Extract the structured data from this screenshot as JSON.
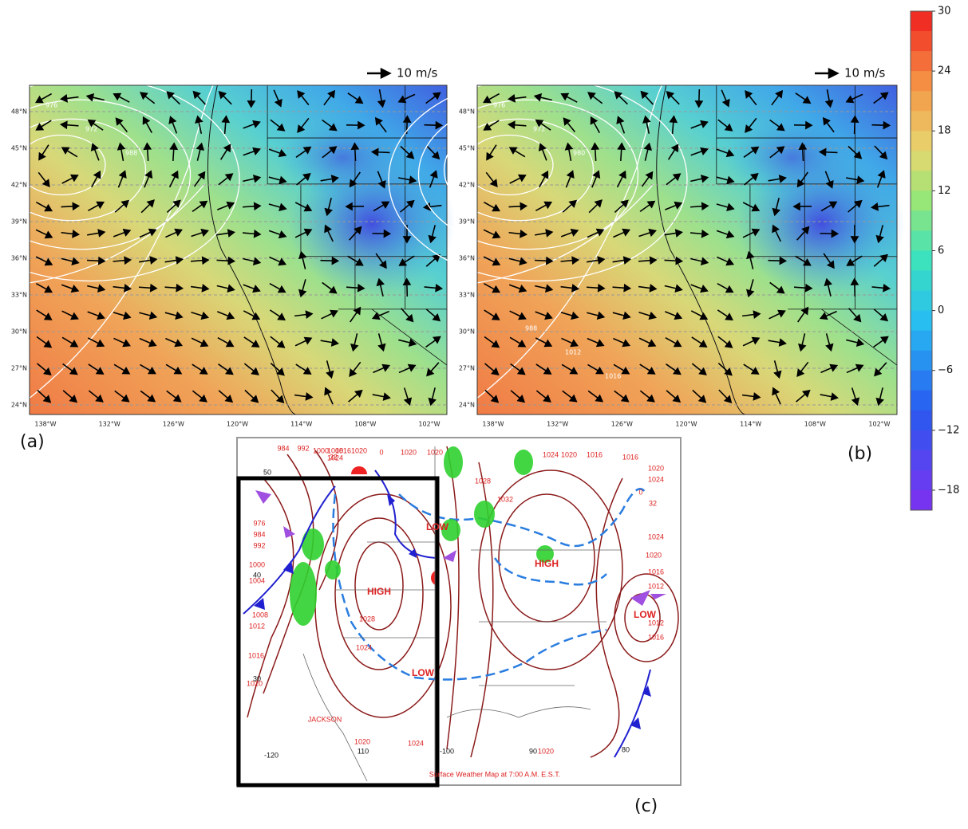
{
  "panels": [
    {
      "label": "(a)",
      "vector_key": "10 m/s",
      "contour_labels": [
        "976",
        "972",
        "988"
      ]
    },
    {
      "label": "(b)",
      "vector_key": "10 m/s",
      "contour_labels": [
        "976",
        "972",
        "980",
        "988",
        "1012",
        "1016"
      ]
    }
  ],
  "axes": {
    "lat_labels": [
      "48°N",
      "45°N",
      "42°N",
      "39°N",
      "36°N",
      "33°N",
      "30°N",
      "27°N",
      "24°N"
    ],
    "lon_labels": [
      "138°W",
      "132°W",
      "126°W",
      "120°W",
      "114°W",
      "108°W",
      "102°W"
    ]
  },
  "colorbar": {
    "lim": [
      -20,
      30
    ],
    "ticks": [
      30,
      24,
      18,
      12,
      6,
      0,
      {
        "value": -6,
        "label": "−6"
      },
      {
        "value": -12,
        "label": "−12"
      },
      {
        "value": -18,
        "label": "−18"
      }
    ]
  },
  "surface_map": {
    "label": "(c)",
    "caption": "Surface Weather Map at 7:00 A.M. E.S.T.",
    "centers": [
      "LOW",
      "HIGH",
      "HIGH",
      "LOW",
      "LOW"
    ],
    "station": "JACKSON",
    "isobars": [
      "984",
      "992",
      "1000",
      "1008",
      "1016",
      "1020",
      "976",
      "984",
      "992",
      "1000",
      "1004",
      "1008",
      "1012",
      "1016",
      "1020",
      "1028",
      "1024",
      "1020",
      "1024",
      "1024",
      "1020",
      "1020",
      "1028",
      "1032",
      "1024",
      "1020",
      "1016",
      "1016",
      "1020",
      "1024",
      "1024",
      "1020",
      "1016",
      "1012",
      "1012",
      "1016",
      "1020"
    ],
    "isotherms": [
      "32",
      "0",
      "32",
      "0"
    ],
    "grid_labels": [
      "50",
      "40",
      "30",
      "-120",
      "110",
      "-100",
      "90",
      "80"
    ]
  }
}
